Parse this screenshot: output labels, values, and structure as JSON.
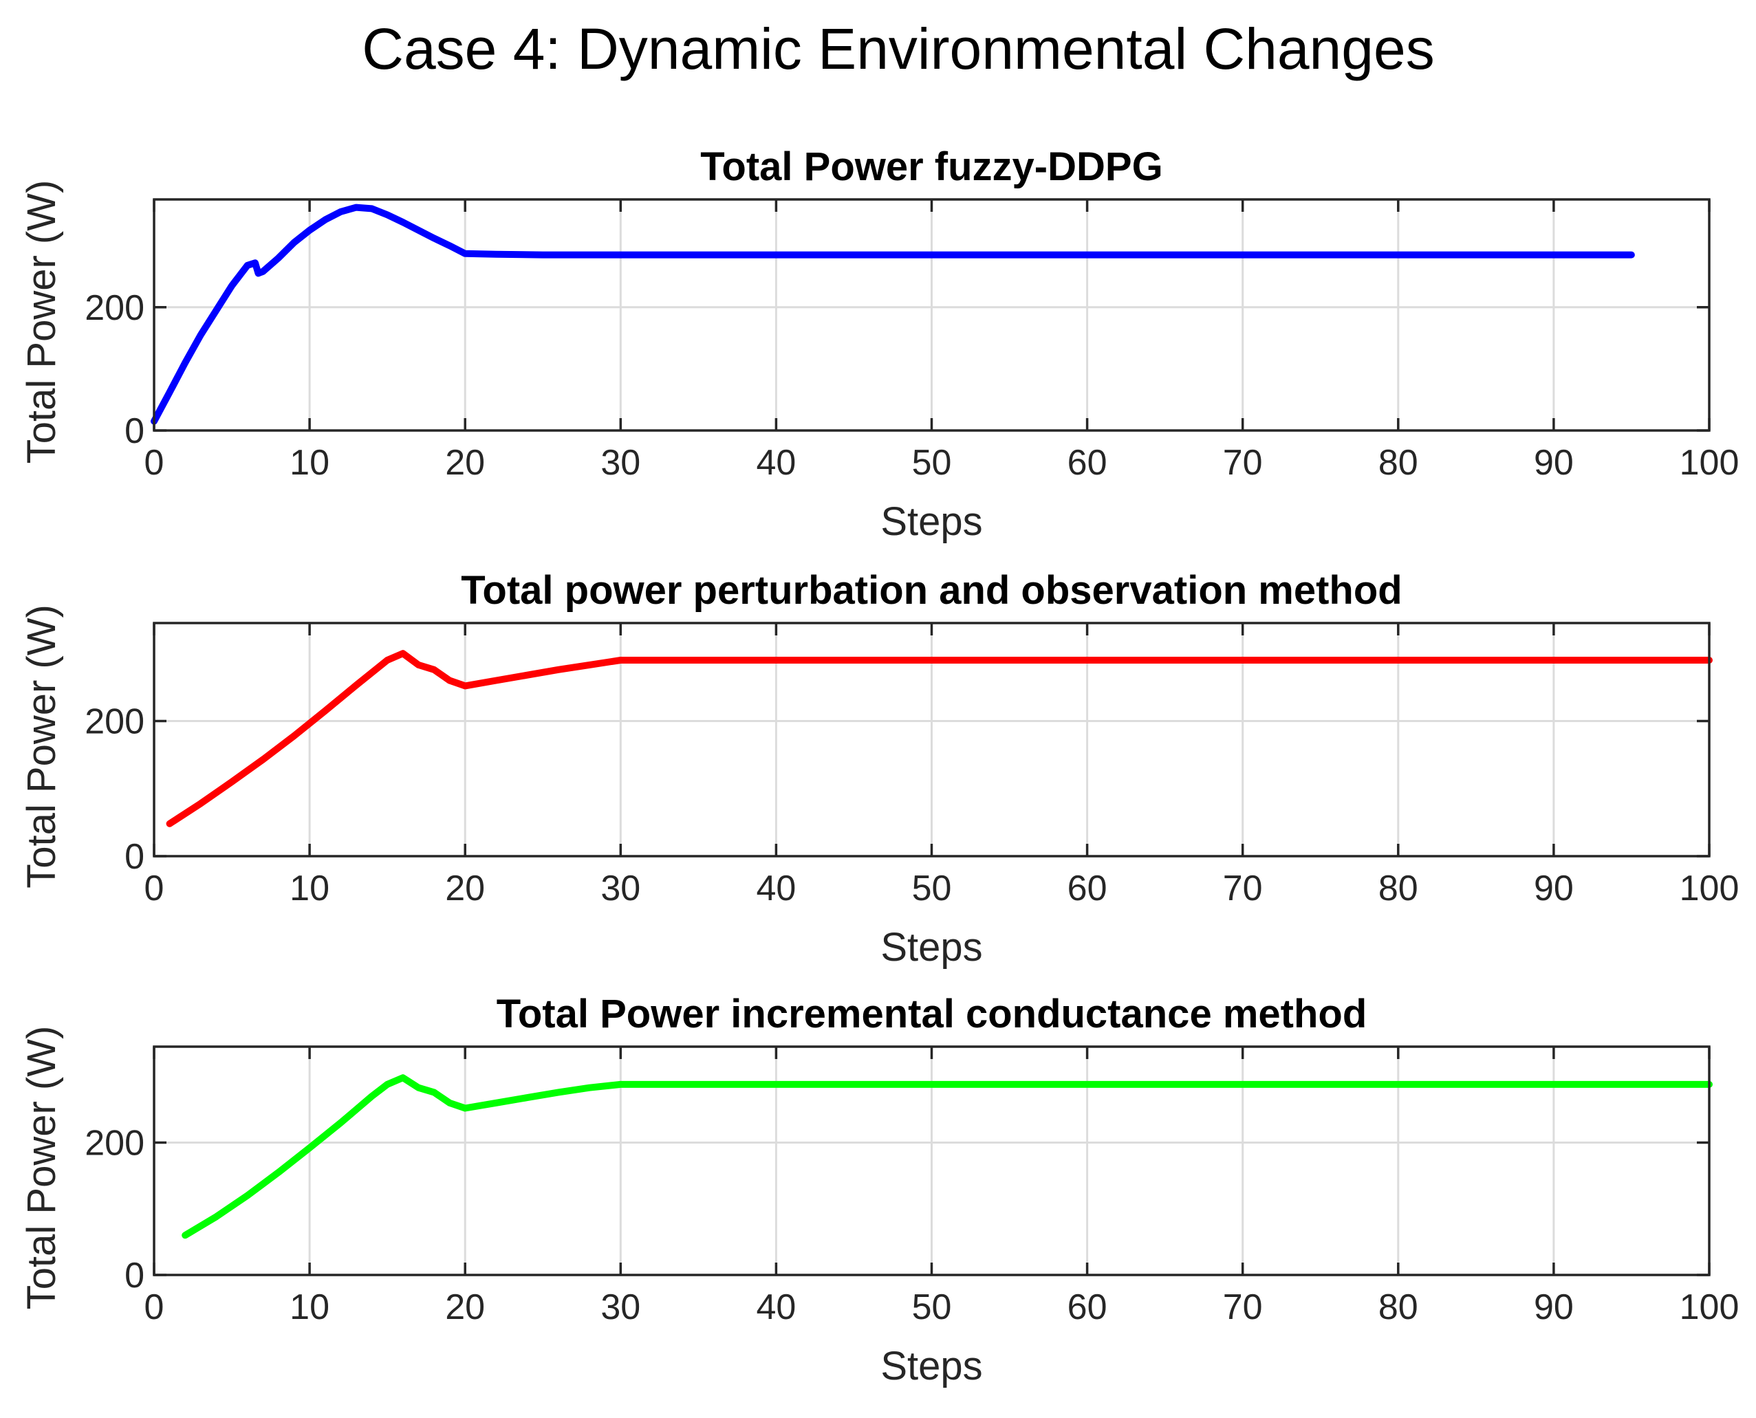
{
  "figure_title": "Case 4: Dynamic Environmental Changes",
  "chart_data": [
    {
      "type": "line",
      "title": "Total Power fuzzy-DDPG",
      "xlabel": "Steps",
      "ylabel": "Total Power (W)",
      "xlim": [
        0,
        100
      ],
      "ylim": [
        0,
        375
      ],
      "xticks": [
        0,
        10,
        20,
        30,
        40,
        50,
        60,
        70,
        80,
        90,
        100
      ],
      "yticks": [
        0,
        200
      ],
      "grid": true,
      "series": [
        {
          "name": "Total Power fuzzy-DDPG",
          "color": "#0000ff",
          "x": [
            0,
            1,
            2,
            3,
            4,
            5,
            6,
            6.5,
            6.7,
            7,
            8,
            9,
            10,
            11,
            12,
            13,
            14,
            15,
            16,
            17,
            18,
            19,
            20,
            22,
            25,
            30,
            40,
            50,
            60,
            70,
            80,
            90,
            95
          ],
          "y": [
            15,
            62,
            110,
            155,
            195,
            235,
            268,
            272,
            255,
            258,
            280,
            305,
            325,
            342,
            355,
            362,
            360,
            350,
            338,
            325,
            312,
            300,
            287,
            286,
            285,
            285,
            285,
            285,
            285,
            285,
            285,
            285,
            285
          ]
        }
      ]
    },
    {
      "type": "line",
      "title": "Total power perturbation and observation method",
      "xlabel": "Steps",
      "ylabel": "Total Power (W)",
      "xlim": [
        0,
        100
      ],
      "ylim": [
        0,
        345
      ],
      "xticks": [
        0,
        10,
        20,
        30,
        40,
        50,
        60,
        70,
        80,
        90,
        100
      ],
      "yticks": [
        0,
        200
      ],
      "grid": true,
      "series": [
        {
          "name": "Total power perturbation and observation method",
          "color": "#ff0000",
          "x": [
            1,
            3,
            5,
            7,
            9,
            11,
            13,
            15,
            16,
            17,
            18,
            19,
            20,
            22,
            24,
            26,
            28,
            30,
            35,
            40,
            50,
            60,
            70,
            80,
            90,
            100
          ],
          "y": [
            48,
            78,
            110,
            143,
            178,
            215,
            253,
            290,
            300,
            283,
            276,
            260,
            252,
            260,
            268,
            276,
            283,
            290,
            290,
            290,
            290,
            290,
            290,
            290,
            290,
            290
          ]
        }
      ]
    },
    {
      "type": "line",
      "title": "Total Power incremental conductance method",
      "xlabel": "Steps",
      "ylabel": "Total Power (W)",
      "xlim": [
        0,
        100
      ],
      "ylim": [
        0,
        345
      ],
      "xticks": [
        0,
        10,
        20,
        30,
        40,
        50,
        60,
        70,
        80,
        90,
        100
      ],
      "yticks": [
        0,
        200
      ],
      "grid": true,
      "series": [
        {
          "name": "Total Power incremental conductance method",
          "color": "#00ff00",
          "x": [
            2,
            4,
            6,
            8,
            10,
            12,
            14,
            15,
            16,
            17,
            18,
            19,
            20,
            22,
            24,
            26,
            28,
            30,
            35,
            40,
            50,
            60,
            70,
            80,
            90,
            100
          ],
          "y": [
            60,
            88,
            120,
            155,
            192,
            230,
            270,
            288,
            298,
            283,
            276,
            260,
            252,
            260,
            268,
            276,
            283,
            288,
            288,
            288,
            288,
            288,
            288,
            288,
            288,
            288
          ]
        }
      ]
    }
  ]
}
